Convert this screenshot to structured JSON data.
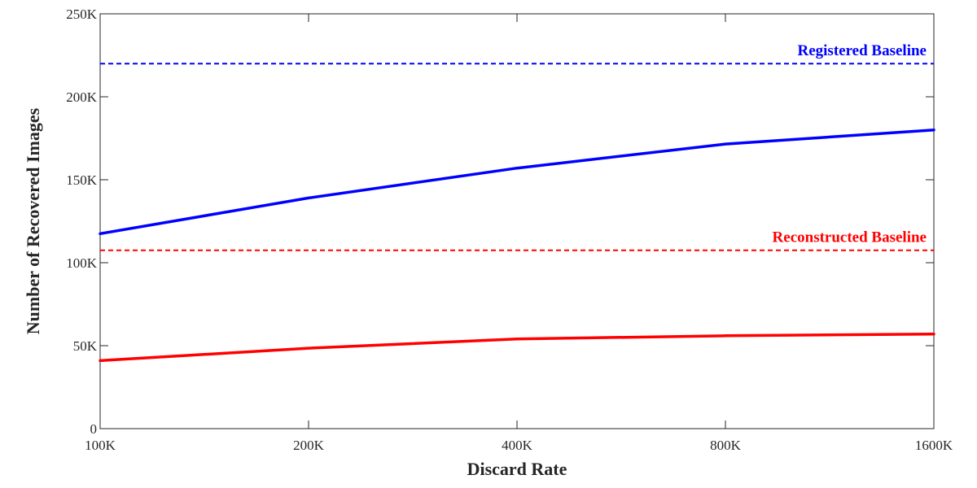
{
  "chart_data": {
    "type": "line",
    "xlabel": "Discard Rate",
    "ylabel": "Number of Recovered Images",
    "x_tick_labels": [
      "100K",
      "200K",
      "400K",
      "800K",
      "1600K"
    ],
    "x_scale": "log2",
    "ylim": [
      0,
      250000
    ],
    "y_tick_values": [
      0,
      50000,
      100000,
      150000,
      200000,
      250000
    ],
    "y_tick_labels": [
      "0",
      "50K",
      "100K",
      "150K",
      "200K",
      "250K"
    ],
    "grid": false,
    "series": [
      {
        "color": "#0000ff",
        "style": "solid",
        "values": [
          117500,
          139000,
          157000,
          171500,
          180000
        ]
      },
      {
        "color": "#ff0000",
        "style": "solid",
        "values": [
          41000,
          48500,
          54000,
          56000,
          57000
        ]
      }
    ],
    "baselines": [
      {
        "label": "Registered Baseline",
        "value": 220000,
        "color": "#0000ff",
        "style": "dashed"
      },
      {
        "label": "Reconstructed Baseline",
        "value": 107500,
        "color": "#ff0000",
        "style": "dashed"
      }
    ]
  }
}
